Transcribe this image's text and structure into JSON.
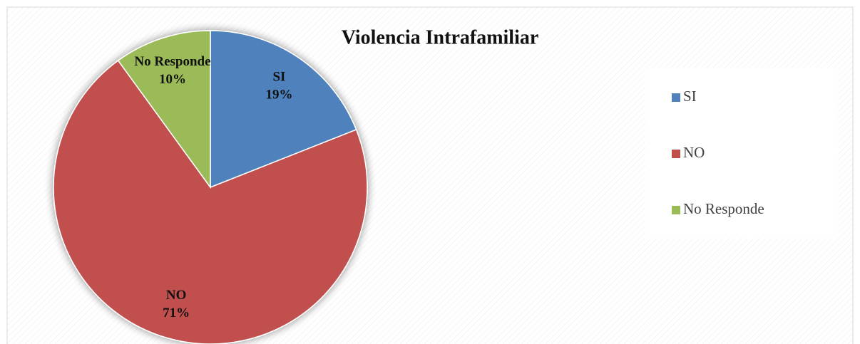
{
  "chart_data": {
    "type": "pie",
    "title": "Violencia Intrafamiliar",
    "categories": [
      "SI",
      "NO",
      "No Responde"
    ],
    "values": [
      19,
      71,
      10
    ],
    "value_labels": [
      "19%",
      "71%",
      "10%"
    ],
    "colors": [
      "#4f81bd",
      "#c0504d",
      "#9bbb59"
    ],
    "legend": "right"
  }
}
